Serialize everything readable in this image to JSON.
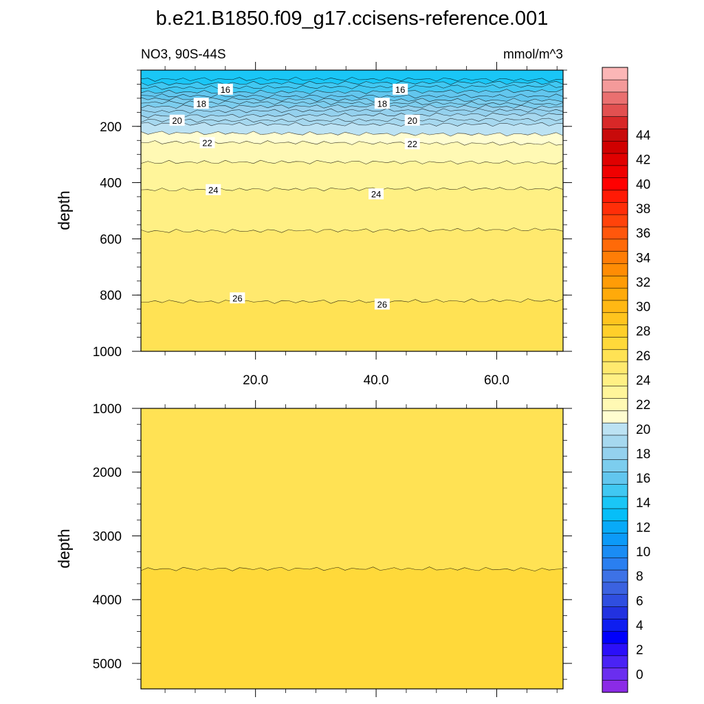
{
  "chart_data": {
    "type": "heatmap",
    "title": "b.e21.B1850.f09_g17.ccisens-reference.001",
    "subtitle_left": "NO3, 90S-44S",
    "subtitle_right": "mmol/m^3",
    "ylabel": "depth",
    "x_range": [
      1,
      71
    ],
    "x_ticks": [
      20,
      40,
      60
    ],
    "x_tick_labels": [
      "20.0",
      "40.0",
      "60.0"
    ],
    "panels": [
      {
        "id": "upper",
        "ylim": [
          0,
          1000
        ],
        "y_inverted": true,
        "y_ticks": [
          200,
          400,
          600,
          800,
          1000
        ],
        "y_tick_labels": [
          "200",
          "400",
          "600",
          "800",
          "1000"
        ],
        "contours": [
          {
            "level": 14.5,
            "depth": 35
          },
          {
            "level": 15,
            "depth": 48
          },
          {
            "level": 15.5,
            "depth": 60
          },
          {
            "level": 16,
            "depth": 75
          },
          {
            "level": 16.5,
            "depth": 90
          },
          {
            "level": 17,
            "depth": 104
          },
          {
            "level": 17.5,
            "depth": 118
          },
          {
            "level": 18,
            "depth": 132
          },
          {
            "level": 18.5,
            "depth": 146
          },
          {
            "level": 19,
            "depth": 160
          },
          {
            "level": 19.5,
            "depth": 176
          },
          {
            "level": 20,
            "depth": 190
          },
          {
            "level": 21,
            "depth": 225
          },
          {
            "level": 22,
            "depth": 260
          },
          {
            "level": 23,
            "depth": 330
          },
          {
            "level": 24,
            "depth": 425
          },
          {
            "level": 25,
            "depth": 570
          },
          {
            "level": 26,
            "depth": 820
          }
        ],
        "contour_labels": [
          {
            "text": "16",
            "x": 15,
            "depth": 68
          },
          {
            "text": "16",
            "x": 44,
            "depth": 68
          },
          {
            "text": "18",
            "x": 11,
            "depth": 118
          },
          {
            "text": "18",
            "x": 41,
            "depth": 118
          },
          {
            "text": "20",
            "x": 7,
            "depth": 178
          },
          {
            "text": "20",
            "x": 46,
            "depth": 178
          },
          {
            "text": "22",
            "x": 12,
            "depth": 258
          },
          {
            "text": "22",
            "x": 46,
            "depth": 262
          },
          {
            "text": "24",
            "x": 13,
            "depth": 425
          },
          {
            "text": "24",
            "x": 40,
            "depth": 440
          },
          {
            "text": "26",
            "x": 17,
            "depth": 810
          },
          {
            "text": "26",
            "x": 41,
            "depth": 832
          }
        ]
      },
      {
        "id": "lower",
        "ylim": [
          1000,
          5400
        ],
        "y_inverted": true,
        "y_ticks": [
          1000,
          2000,
          3000,
          4000,
          5000
        ],
        "y_tick_labels": [
          "1000",
          "2000",
          "3000",
          "4000",
          "5000"
        ],
        "contours": [
          {
            "level": 27,
            "depth": 3530
          }
        ]
      }
    ],
    "colorbar": {
      "labeled_levels": [
        0,
        2,
        4,
        6,
        8,
        10,
        12,
        14,
        16,
        18,
        20,
        22,
        24,
        26,
        28,
        30,
        32,
        34,
        36,
        38,
        40,
        42,
        44
      ],
      "labels": [
        "0",
        "2",
        "4",
        "6",
        "8",
        "10",
        "12",
        "14",
        "16",
        "18",
        "20",
        "22",
        "24",
        "26",
        "28",
        "30",
        "32",
        "34",
        "36",
        "38",
        "40",
        "42",
        "44"
      ],
      "colors": [
        "#8b2be6",
        "#6a2eef",
        "#4a23f5",
        "#2b0ff9",
        "#0000fb",
        "#0e1ef0",
        "#2232e0",
        "#2f4ee0",
        "#3b62e0",
        "#3d72e6",
        "#2a7ff0",
        "#1a8cf4",
        "#0c9af8",
        "#08aaf8",
        "#06bef8",
        "#1ac6f6",
        "#40c8f2",
        "#62c6ee",
        "#7ccdee",
        "#94d1ee",
        "#a6d8ef",
        "#bce2f3",
        "#fffdd0",
        "#fff9b4",
        "#fff59a",
        "#fff084",
        "#ffe96e",
        "#ffe254",
        "#ffd93a",
        "#ffcf2a",
        "#ffc41e",
        "#ffb814",
        "#ffaa0a",
        "#ff9c06",
        "#ff8c04",
        "#ff7d06",
        "#ff6a08",
        "#ff570c",
        "#ff430a",
        "#ff2e08",
        "#ff1a05",
        "#ff0000",
        "#f00000",
        "#e00000",
        "#d00000",
        "#c80a0a",
        "#d82828",
        "#e25050",
        "#ea7070",
        "#f49a9a",
        "#fbb6b6"
      ]
    }
  }
}
